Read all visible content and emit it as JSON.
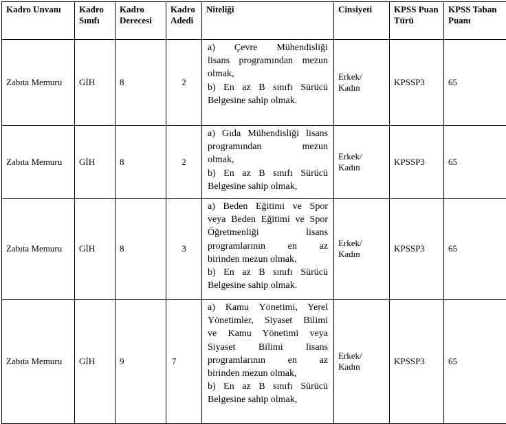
{
  "headers": [
    "Kadro Unvanı",
    "Kadro Sınıfı",
    "Kadro Derecesi",
    "Kadro Adedi",
    "Niteliği",
    "Cinsiyeti",
    "KPSS Puan Türü",
    "KPSS Taban Puanı"
  ],
  "rows": [
    {
      "unvan": "Zabıta Memuru",
      "sinif": "GİH",
      "derece": "8",
      "adet": "2",
      "niteligi": [
        "a) Çevre Mühendisliği",
        "lisans programından mezun",
        "olmak,",
        "b) En az B sınıfı Sürücü",
        "Belgesine sahip olmak."
      ],
      "cinsiyet": [
        "Erkek/",
        "Kadın"
      ],
      "puan_turu": "KPSSP3",
      "taban": "65"
    },
    {
      "unvan": "Zabıta Memuru",
      "sinif": "GİH",
      "derece": "8",
      "adet": "2",
      "niteligi": [
        "a) Gıda Mühendisliği lisans",
        "programından mezun",
        "olmak,",
        "b) En az B sınıfı Sürücü",
        "Belgesine sahip olmak,"
      ],
      "cinsiyet": [
        "Erkek/",
        "Kadın"
      ],
      "puan_turu": "KPSSP3",
      "taban": "65"
    },
    {
      "unvan": "Zabıta Memuru",
      "sinif": "GİH",
      "derece": "8",
      "adet": "3",
      "niteligi": [
        "a) Beden Eğitimi ve Spor",
        "veya Beden Eğitimi ve Spor",
        "Öğretmenliği lisans",
        "programlarının en az",
        "birinden mezun olmak.",
        "b) En az B sınıfı Sürücü",
        "Belgesine sahip olmak."
      ],
      "cinsiyet": [
        "Erkek/",
        "Kadın"
      ],
      "puan_turu": "KPSSP3",
      "taban": "65"
    },
    {
      "unvan": "Zabıta Memuru",
      "sinif": "GİH",
      "derece": "9",
      "adet": "7",
      "niteligi": [
        "a) Kamu Yönetimi, Yerel",
        "Yönetimler, Siyaset Bilimi",
        "ve Kamu Yönetimi veya",
        "Siyaset Bilimi lisans",
        "programlarının en az",
        "birinden mezun olmak,",
        "b) En az B sınıfı Sürücü",
        "Belgesine sahip olmak,"
      ],
      "cinsiyet": [
        "Erkek/",
        "Kadın"
      ],
      "puan_turu": "KPSSP3",
      "taban": "65"
    }
  ]
}
